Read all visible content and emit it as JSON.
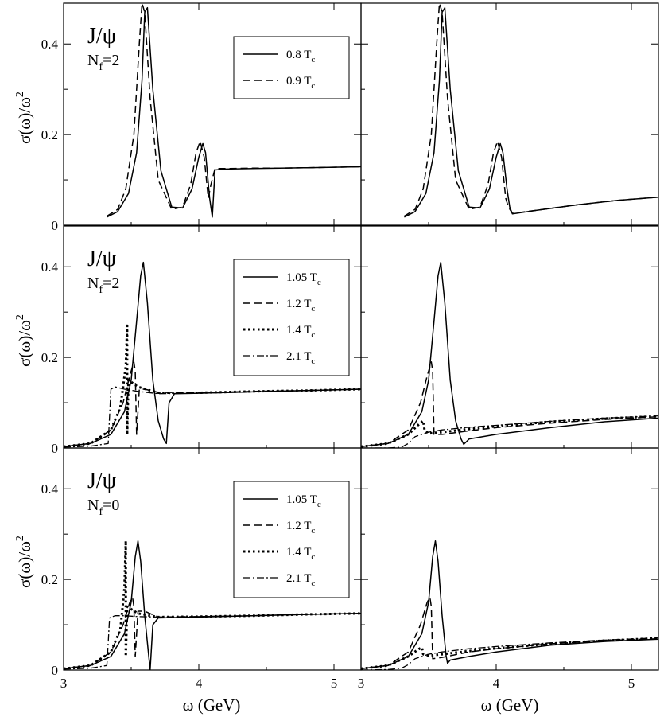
{
  "figure": {
    "y_axis_label": "σ(ω)/ω",
    "y_axis_label_sup": "2",
    "x_axis_label": "ω (GeV)"
  },
  "chart_data": [
    {
      "type": "line",
      "title": "J/ψ",
      "subtitle": "N",
      "subtitle_sub": "f",
      "subtitle_rest": "=2",
      "xlim": [
        3.0,
        5.2
      ],
      "ylim": [
        0,
        0.49
      ],
      "xticks": [
        3,
        4,
        5
      ],
      "yticks": [
        0,
        0.2,
        0.4
      ],
      "ytick_labels": [
        "0",
        "0.2",
        "0.4"
      ],
      "legend_position": "top-right",
      "series": [
        {
          "name": "0.8 T",
          "name_sub": "c",
          "style": "solid",
          "x": [
            3.32,
            3.4,
            3.48,
            3.54,
            3.58,
            3.6,
            3.62,
            3.66,
            3.72,
            3.8,
            3.88,
            3.95,
            4.0,
            4.03,
            4.05,
            4.08,
            4.1,
            4.12,
            4.2,
            4.4,
            4.6,
            4.8,
            5.0,
            5.2
          ],
          "y": [
            0.018,
            0.03,
            0.07,
            0.16,
            0.32,
            0.47,
            0.48,
            0.3,
            0.12,
            0.04,
            0.038,
            0.08,
            0.15,
            0.18,
            0.16,
            0.06,
            0.018,
            0.122,
            0.124,
            0.125,
            0.126,
            0.127,
            0.128,
            0.129
          ]
        },
        {
          "name": "0.9 T",
          "name_sub": "c",
          "style": "dashed",
          "x": [
            3.32,
            3.4,
            3.46,
            3.52,
            3.56,
            3.58,
            3.6,
            3.64,
            3.7,
            3.8,
            3.88,
            3.94,
            3.98,
            4.01,
            4.04,
            4.07,
            4.09,
            4.12,
            4.2,
            4.4,
            4.6,
            4.8,
            5.0,
            5.2
          ],
          "y": [
            0.02,
            0.035,
            0.08,
            0.2,
            0.4,
            0.49,
            0.47,
            0.28,
            0.1,
            0.035,
            0.04,
            0.09,
            0.16,
            0.185,
            0.15,
            0.06,
            0.09,
            0.125,
            0.125,
            0.126,
            0.126,
            0.127,
            0.128,
            0.129
          ]
        }
      ]
    },
    {
      "type": "line",
      "xlim": [
        3.0,
        5.2
      ],
      "ylim": [
        0,
        0.49
      ],
      "xticks": [
        3,
        4,
        5
      ],
      "yticks": [
        0,
        0.2,
        0.4
      ],
      "series": [
        {
          "name": "0.8 T",
          "name_sub": "c",
          "style": "solid",
          "x": [
            3.32,
            3.4,
            3.48,
            3.54,
            3.58,
            3.6,
            3.62,
            3.66,
            3.72,
            3.8,
            3.88,
            3.95,
            4.0,
            4.03,
            4.05,
            4.08,
            4.1,
            4.12,
            4.3,
            4.6,
            4.9,
            5.2
          ],
          "y": [
            0.018,
            0.03,
            0.07,
            0.16,
            0.32,
            0.47,
            0.48,
            0.3,
            0.12,
            0.04,
            0.038,
            0.08,
            0.15,
            0.18,
            0.16,
            0.08,
            0.04,
            0.025,
            0.033,
            0.045,
            0.055,
            0.062
          ]
        },
        {
          "name": "0.9 T",
          "name_sub": "c",
          "style": "dashed",
          "x": [
            3.32,
            3.4,
            3.46,
            3.52,
            3.56,
            3.58,
            3.6,
            3.64,
            3.7,
            3.8,
            3.88,
            3.94,
            3.98,
            4.01,
            4.04,
            4.07,
            4.09,
            4.12,
            4.3,
            4.6,
            4.9,
            5.2
          ],
          "y": [
            0.02,
            0.035,
            0.08,
            0.2,
            0.4,
            0.49,
            0.47,
            0.28,
            0.1,
            0.035,
            0.04,
            0.09,
            0.16,
            0.185,
            0.15,
            0.06,
            0.04,
            0.026,
            0.033,
            0.045,
            0.055,
            0.062
          ]
        }
      ]
    },
    {
      "type": "line",
      "title": "J/ψ",
      "subtitle": "N",
      "subtitle_sub": "f",
      "subtitle_rest": "=2",
      "xlim": [
        3.0,
        5.2
      ],
      "ylim": [
        0,
        0.49
      ],
      "xticks": [
        3,
        4,
        5
      ],
      "yticks": [
        0,
        0.2,
        0.4
      ],
      "ytick_labels": [
        "0",
        "0.2",
        "0.4"
      ],
      "legend_position": "top-right",
      "series": [
        {
          "name": "1.05 T",
          "name_sub": "c",
          "style": "solid",
          "x": [
            3.0,
            3.2,
            3.35,
            3.45,
            3.5,
            3.54,
            3.57,
            3.59,
            3.62,
            3.66,
            3.7,
            3.74,
            3.76,
            3.78,
            3.82,
            4.0,
            4.4,
            4.8,
            5.2
          ],
          "y": [
            0.003,
            0.01,
            0.03,
            0.08,
            0.15,
            0.28,
            0.38,
            0.41,
            0.32,
            0.15,
            0.06,
            0.02,
            0.01,
            0.1,
            0.12,
            0.121,
            0.124,
            0.127,
            0.13
          ]
        },
        {
          "name": "1.2 T",
          "name_sub": "c",
          "style": "dashed",
          "x": [
            3.0,
            3.2,
            3.35,
            3.44,
            3.49,
            3.52,
            3.53,
            3.54,
            3.56,
            3.6,
            3.7,
            4.0,
            4.4,
            4.8,
            5.2
          ],
          "y": [
            0.003,
            0.01,
            0.04,
            0.1,
            0.16,
            0.19,
            0.17,
            0.03,
            0.13,
            0.13,
            0.123,
            0.122,
            0.125,
            0.127,
            0.13
          ]
        },
        {
          "name": "1.4 T",
          "name_sub": "c",
          "style": "dotted",
          "x": [
            3.0,
            3.2,
            3.35,
            3.42,
            3.46,
            3.47,
            3.47,
            3.48,
            3.55,
            3.7,
            4.0,
            4.4,
            4.8,
            5.2
          ],
          "y": [
            0.003,
            0.01,
            0.04,
            0.09,
            0.18,
            0.27,
            0.03,
            0.15,
            0.135,
            0.122,
            0.122,
            0.125,
            0.127,
            0.13
          ]
        },
        {
          "name": "2.1 T",
          "name_sub": "c",
          "style": "dashdot",
          "x": [
            3.0,
            3.2,
            3.33,
            3.34,
            3.35,
            3.38,
            3.45,
            3.55,
            3.7,
            4.0,
            4.4,
            4.8,
            5.2
          ],
          "y": [
            0.002,
            0.004,
            0.01,
            0.07,
            0.13,
            0.135,
            0.13,
            0.125,
            0.12,
            0.121,
            0.124,
            0.127,
            0.13
          ]
        }
      ]
    },
    {
      "type": "line",
      "xlim": [
        3.0,
        5.2
      ],
      "ylim": [
        0,
        0.49
      ],
      "xticks": [
        3,
        4,
        5
      ],
      "yticks": [
        0,
        0.2,
        0.4
      ],
      "series": [
        {
          "name": "1.05 T",
          "name_sub": "c",
          "style": "solid",
          "x": [
            3.0,
            3.2,
            3.35,
            3.45,
            3.5,
            3.54,
            3.57,
            3.59,
            3.62,
            3.66,
            3.7,
            3.74,
            3.76,
            3.8,
            4.0,
            4.4,
            4.8,
            5.2
          ],
          "y": [
            0.003,
            0.01,
            0.03,
            0.08,
            0.15,
            0.28,
            0.38,
            0.41,
            0.32,
            0.15,
            0.06,
            0.02,
            0.008,
            0.02,
            0.03,
            0.045,
            0.058,
            0.066
          ]
        },
        {
          "name": "1.2 T",
          "name_sub": "c",
          "style": "dashed",
          "x": [
            3.0,
            3.2,
            3.35,
            3.44,
            3.49,
            3.52,
            3.53,
            3.54,
            3.6,
            3.8,
            4.0,
            4.4,
            4.8,
            5.2
          ],
          "y": [
            0.003,
            0.01,
            0.04,
            0.1,
            0.16,
            0.19,
            0.17,
            0.03,
            0.03,
            0.038,
            0.045,
            0.055,
            0.063,
            0.069
          ]
        },
        {
          "name": "1.4 T",
          "name_sub": "c",
          "style": "dotted",
          "x": [
            3.0,
            3.2,
            3.35,
            3.42,
            3.46,
            3.47,
            3.5,
            3.6,
            3.8,
            4.0,
            4.4,
            4.8,
            5.2
          ],
          "y": [
            0.003,
            0.01,
            0.03,
            0.05,
            0.06,
            0.04,
            0.032,
            0.035,
            0.042,
            0.048,
            0.058,
            0.065,
            0.07
          ]
        },
        {
          "name": "2.1 T",
          "name_sub": "c",
          "style": "dashdot",
          "x": [
            3.0,
            3.2,
            3.3,
            3.35,
            3.4,
            3.5,
            3.6,
            3.8,
            4.0,
            4.4,
            4.8,
            5.2
          ],
          "y": [
            0.0,
            0.0,
            0.002,
            0.01,
            0.025,
            0.035,
            0.04,
            0.046,
            0.05,
            0.059,
            0.066,
            0.071
          ]
        }
      ]
    },
    {
      "type": "line",
      "title": "J/ψ",
      "subtitle": "N",
      "subtitle_sub": "f",
      "subtitle_rest": "=0",
      "xlim": [
        3.0,
        5.2
      ],
      "ylim": [
        0,
        0.49
      ],
      "xticks": [
        3,
        4,
        5
      ],
      "yticks": [
        0,
        0.2,
        0.4
      ],
      "xtick_labels": [
        "3",
        "4",
        "5"
      ],
      "ytick_labels": [
        "0",
        "0.2",
        "0.4"
      ],
      "legend_position": "top-right",
      "series": [
        {
          "name": "1.05 T",
          "name_sub": "c",
          "style": "solid",
          "x": [
            3.0,
            3.2,
            3.35,
            3.45,
            3.5,
            3.53,
            3.55,
            3.57,
            3.6,
            3.63,
            3.64,
            3.66,
            3.7,
            4.0,
            4.4,
            4.8,
            5.2
          ],
          "y": [
            0.003,
            0.01,
            0.03,
            0.08,
            0.15,
            0.25,
            0.285,
            0.24,
            0.12,
            0.03,
            0.0,
            0.1,
            0.115,
            0.117,
            0.12,
            0.123,
            0.125
          ]
        },
        {
          "name": "1.2 T",
          "name_sub": "c",
          "style": "dashed",
          "x": [
            3.0,
            3.2,
            3.35,
            3.44,
            3.49,
            3.51,
            3.52,
            3.53,
            3.55,
            3.6,
            3.7,
            4.0,
            4.4,
            4.8,
            5.2
          ],
          "y": [
            0.003,
            0.01,
            0.04,
            0.1,
            0.15,
            0.16,
            0.14,
            0.03,
            0.13,
            0.13,
            0.117,
            0.118,
            0.12,
            0.123,
            0.125
          ]
        },
        {
          "name": "1.4 T",
          "name_sub": "c",
          "style": "dotted",
          "x": [
            3.0,
            3.2,
            3.35,
            3.42,
            3.45,
            3.46,
            3.46,
            3.47,
            3.55,
            3.7,
            4.0,
            4.4,
            4.8,
            5.2
          ],
          "y": [
            0.003,
            0.01,
            0.04,
            0.09,
            0.18,
            0.285,
            0.03,
            0.14,
            0.125,
            0.117,
            0.118,
            0.12,
            0.123,
            0.125
          ]
        },
        {
          "name": "2.1 T",
          "name_sub": "c",
          "style": "dashdot",
          "x": [
            3.0,
            3.2,
            3.32,
            3.33,
            3.34,
            3.38,
            3.45,
            3.55,
            3.7,
            4.0,
            4.4,
            4.8,
            5.2
          ],
          "y": [
            0.002,
            0.004,
            0.01,
            0.06,
            0.115,
            0.12,
            0.12,
            0.118,
            0.117,
            0.118,
            0.12,
            0.123,
            0.125
          ]
        }
      ]
    },
    {
      "type": "line",
      "xlim": [
        3.0,
        5.2
      ],
      "ylim": [
        0,
        0.49
      ],
      "xticks": [
        3,
        4,
        5
      ],
      "yticks": [
        0,
        0.2,
        0.4
      ],
      "xtick_labels": [
        "3",
        "4",
        "5"
      ],
      "series": [
        {
          "name": "1.05 T",
          "name_sub": "c",
          "style": "solid",
          "x": [
            3.0,
            3.2,
            3.35,
            3.45,
            3.5,
            3.53,
            3.55,
            3.57,
            3.6,
            3.63,
            3.64,
            3.66,
            3.8,
            4.0,
            4.4,
            4.8,
            5.2
          ],
          "y": [
            0.003,
            0.01,
            0.03,
            0.08,
            0.15,
            0.25,
            0.285,
            0.24,
            0.12,
            0.03,
            0.015,
            0.022,
            0.03,
            0.04,
            0.055,
            0.063,
            0.068
          ]
        },
        {
          "name": "1.2 T",
          "name_sub": "c",
          "style": "dashed",
          "x": [
            3.0,
            3.2,
            3.35,
            3.44,
            3.49,
            3.51,
            3.52,
            3.53,
            3.6,
            3.8,
            4.0,
            4.4,
            4.8,
            5.2
          ],
          "y": [
            0.003,
            0.01,
            0.04,
            0.1,
            0.15,
            0.16,
            0.14,
            0.025,
            0.028,
            0.04,
            0.047,
            0.058,
            0.065,
            0.069
          ]
        },
        {
          "name": "1.4 T",
          "name_sub": "c",
          "style": "dotted",
          "x": [
            3.0,
            3.2,
            3.35,
            3.42,
            3.45,
            3.46,
            3.5,
            3.6,
            3.8,
            4.0,
            4.4,
            4.8,
            5.2
          ],
          "y": [
            0.003,
            0.01,
            0.03,
            0.045,
            0.05,
            0.035,
            0.032,
            0.035,
            0.042,
            0.048,
            0.058,
            0.065,
            0.07
          ]
        },
        {
          "name": "2.1 T",
          "name_sub": "c",
          "style": "dashdot",
          "x": [
            3.0,
            3.2,
            3.3,
            3.35,
            3.4,
            3.5,
            3.6,
            3.8,
            4.0,
            4.4,
            4.8,
            5.2
          ],
          "y": [
            0.0,
            0.001,
            0.004,
            0.012,
            0.025,
            0.035,
            0.04,
            0.047,
            0.052,
            0.06,
            0.066,
            0.071
          ]
        }
      ]
    }
  ]
}
